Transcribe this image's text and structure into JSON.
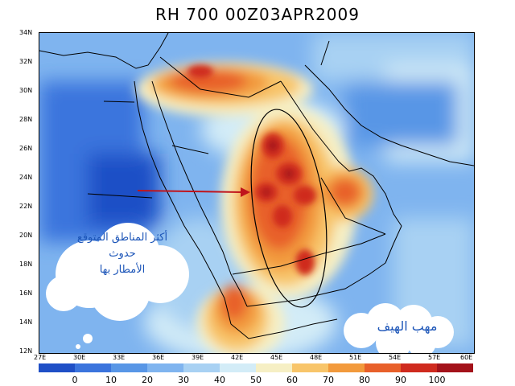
{
  "title": "RH 700 00Z03APR2009",
  "lat_labels": [
    "34N",
    "32N",
    "30N",
    "28N",
    "26N",
    "24N",
    "22N",
    "20N",
    "18N",
    "16N",
    "14N",
    "12N"
  ],
  "lon_labels": [
    "27E",
    "30E",
    "33E",
    "36E",
    "39E",
    "42E",
    "45E",
    "48E",
    "51E",
    "54E",
    "57E",
    "60E"
  ],
  "annotation_left": {
    "line1": "أكثر المناطق المتوقع",
    "line2": "حدوث",
    "line3": "الأمطار بها"
  },
  "annotation_right": "مهب الهيف",
  "colorbar": {
    "ticks": [
      "0",
      "10",
      "20",
      "30",
      "40",
      "50",
      "60",
      "70",
      "80",
      "90",
      "100"
    ],
    "colors": [
      "#1f4fc6",
      "#3b74dd",
      "#5896e6",
      "#7fb4ef",
      "#a8d1f3",
      "#d3ecf7",
      "#f6efc4",
      "#f8c56a",
      "#f29a3c",
      "#e8602a",
      "#cf2a1e",
      "#a3121a"
    ]
  },
  "colors": {
    "arrow": "#c0141c",
    "ellipse": "#000000",
    "coast": "#000000"
  }
}
